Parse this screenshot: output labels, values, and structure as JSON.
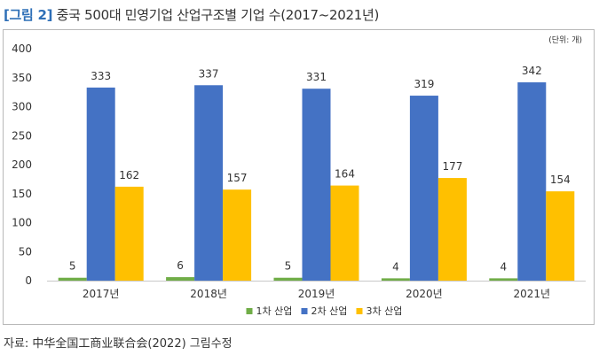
{
  "figure": {
    "tag": "[그림 2]",
    "title": "중국 500대 민영기업 산업구조별 기업 수(2017~2021년)",
    "unit": "(단위: 개)",
    "source": "자료: 中华全国工商业联合会(2022) 그림수정"
  },
  "chart_data": {
    "type": "bar",
    "title": "중국 500대 민영기업 산업구조별 기업 수(2017~2021년)",
    "categories": [
      "2017년",
      "2018년",
      "2019년",
      "2020년",
      "2021년"
    ],
    "series": [
      {
        "name": "1차 산업",
        "values": [
          5,
          6,
          5,
          4,
          4
        ],
        "color": "#70ad47"
      },
      {
        "name": "2차 산업",
        "values": [
          333,
          337,
          331,
          319,
          342
        ],
        "color": "#4472c4"
      },
      {
        "name": "3차 산업",
        "values": [
          162,
          157,
          164,
          177,
          154
        ],
        "color": "#ffc000"
      }
    ],
    "ylim": [
      0,
      400
    ],
    "yticks": [
      0,
      50,
      100,
      150,
      200,
      250,
      300,
      350,
      400
    ],
    "grid": false,
    "legend": "bottom-center",
    "data_labels": true
  }
}
